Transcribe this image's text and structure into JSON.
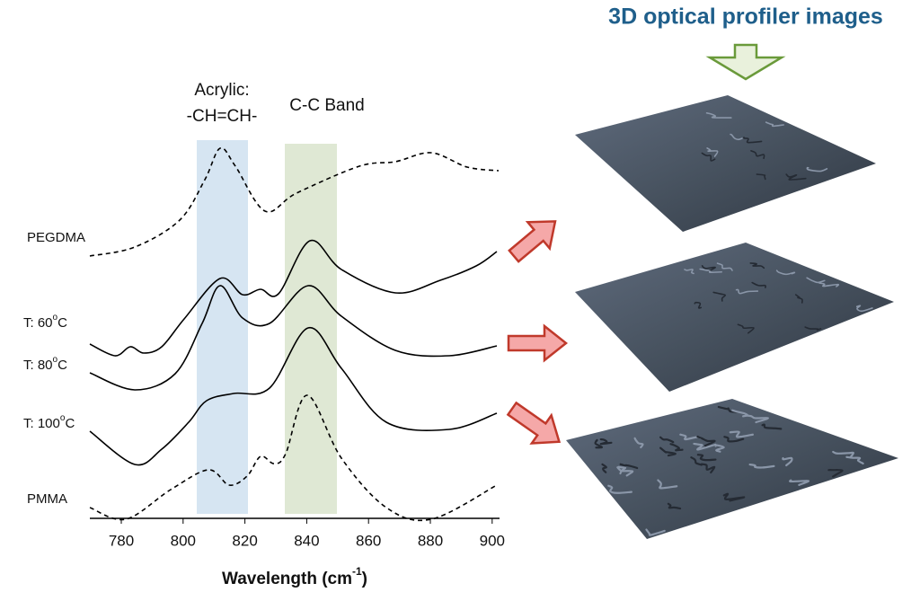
{
  "header": {
    "title": "3D optical profiler images"
  },
  "bands": {
    "acrylic": [
      "Acrylic:",
      "-CH=CH-"
    ],
    "cc": "C-C Band"
  },
  "samples": [
    {
      "prefix": "PEGDMA"
    },
    {
      "prefix": "T: 60",
      "sup": "o",
      "suffix": "C"
    },
    {
      "prefix": "T: 80",
      "sup": "o",
      "suffix": "C"
    },
    {
      "prefix": "T: 100",
      "sup": "o",
      "suffix": "C"
    },
    {
      "prefix": "PMMA"
    }
  ],
  "x_axis": {
    "ticks": [
      "780",
      "800",
      "820",
      "840",
      "860",
      "880",
      "900"
    ],
    "title": {
      "prefix": "Wavelength (cm",
      "sup": "-1",
      "suffix": ")"
    }
  }
}
